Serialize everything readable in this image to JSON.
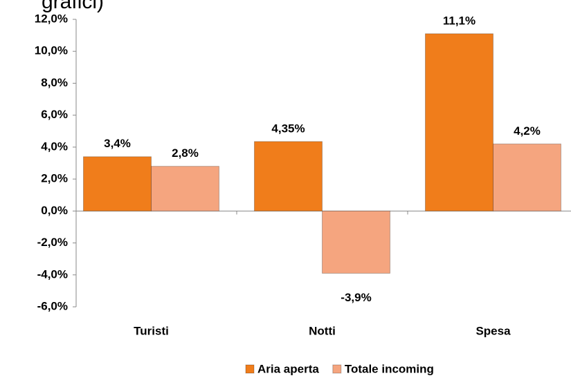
{
  "chart_data": {
    "type": "bar",
    "title": "grafici)",
    "categories": [
      "Turisti",
      "Notti",
      "Spesa"
    ],
    "series": [
      {
        "name": "Aria aperta",
        "color": "#f07d1b",
        "values": [
          3.4,
          4.35,
          11.1
        ],
        "value_labels": [
          "3,4%",
          "4,35%",
          "11,1%"
        ]
      },
      {
        "name": "Totale incoming",
        "color": "#f5a57f",
        "values": [
          2.8,
          -3.9,
          4.2
        ],
        "value_labels": [
          "2,8%",
          "-3,9%",
          "4,2%"
        ]
      }
    ],
    "ylim": [
      -6,
      12
    ],
    "yticks": [
      {
        "value": -6,
        "label": "-6,0%"
      },
      {
        "value": -4,
        "label": "-4,0%"
      },
      {
        "value": -2,
        "label": "-2,0%"
      },
      {
        "value": 0,
        "label": "0,0%"
      },
      {
        "value": 2,
        "label": "2,0%"
      },
      {
        "value": 4,
        "label": "4,0%"
      },
      {
        "value": 6,
        "label": "6,0%"
      },
      {
        "value": 8,
        "label": "8,0%"
      },
      {
        "value": 10,
        "label": "10,0%"
      },
      {
        "value": 12,
        "label": "12,0%"
      }
    ],
    "grid": false,
    "legend": "bottom"
  }
}
